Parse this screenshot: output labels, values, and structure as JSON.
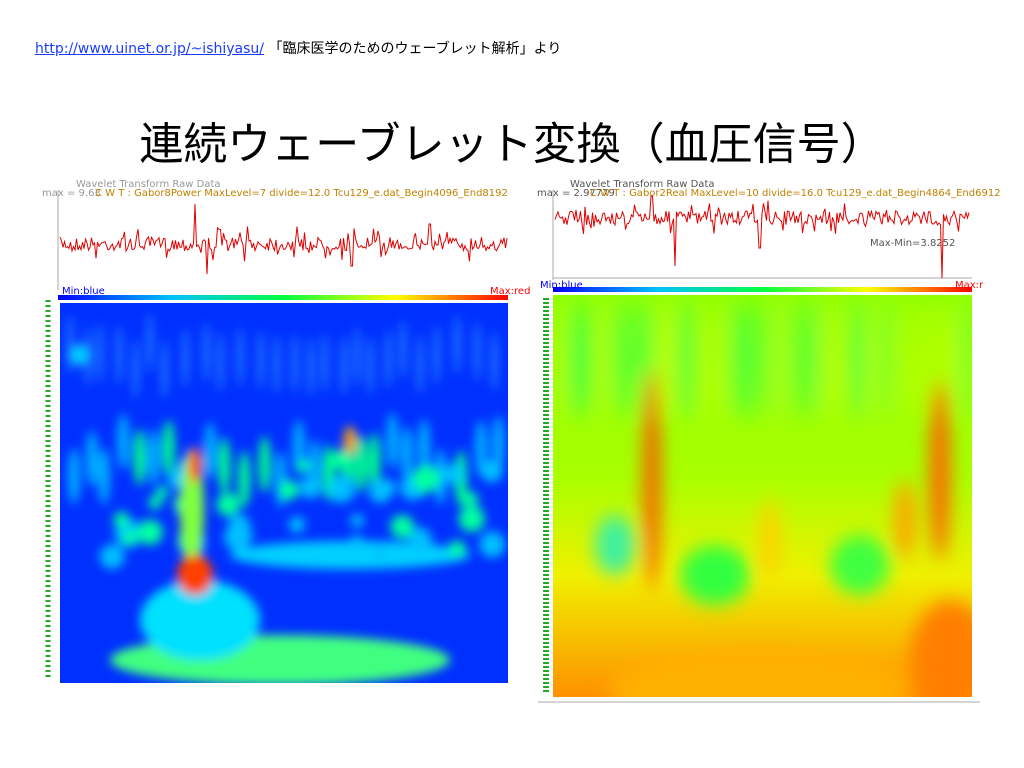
{
  "header": {
    "link": "http://www.uinet.or.jp/~ishiyasu/",
    "source_note": "「臨床医学のためのウェーブレット解析」より"
  },
  "title": "連続ウェーブレット変換（血圧信号）",
  "panels": [
    {
      "heading": "Wavelet Transform Raw Data",
      "max_label": "max = 9.63",
      "params": "C W T : Gabor8Power MaxLevel=7 divide=12.0 Tcu129_e.dat_Begin4096_End8192",
      "min_color": "Min:blue",
      "max_color": "Max:red"
    },
    {
      "heading": "Wavelet Transform Raw Data",
      "max_label": "max = 2.97779",
      "params": "C W T : Gabor2Real MaxLevel=10 divide=16.0 Tcu129_e.dat_Begin4864_End6912",
      "range_label": "Max-Min=3.8252",
      "min_color": "Min:blue",
      "max_color": "Max:r"
    }
  ]
}
